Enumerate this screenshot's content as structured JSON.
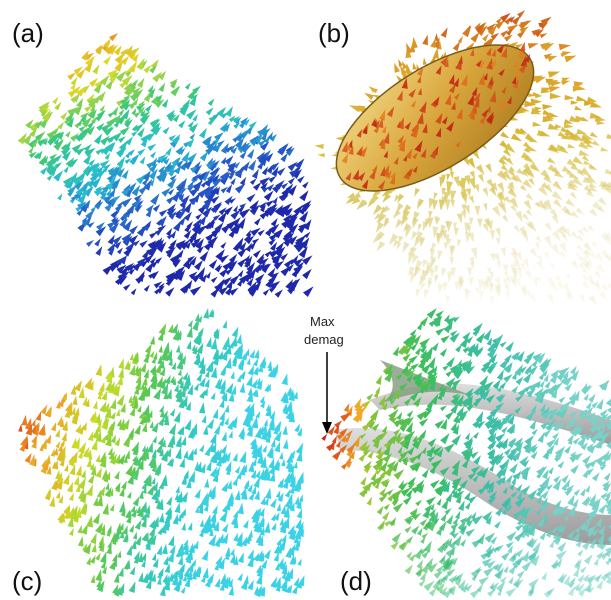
{
  "panels": [
    {
      "label": "(a)"
    },
    {
      "label": "(b)"
    },
    {
      "label": "(c)"
    },
    {
      "label": "(d)"
    }
  ],
  "annotation": {
    "line1": "Max",
    "line2": "demag"
  }
}
